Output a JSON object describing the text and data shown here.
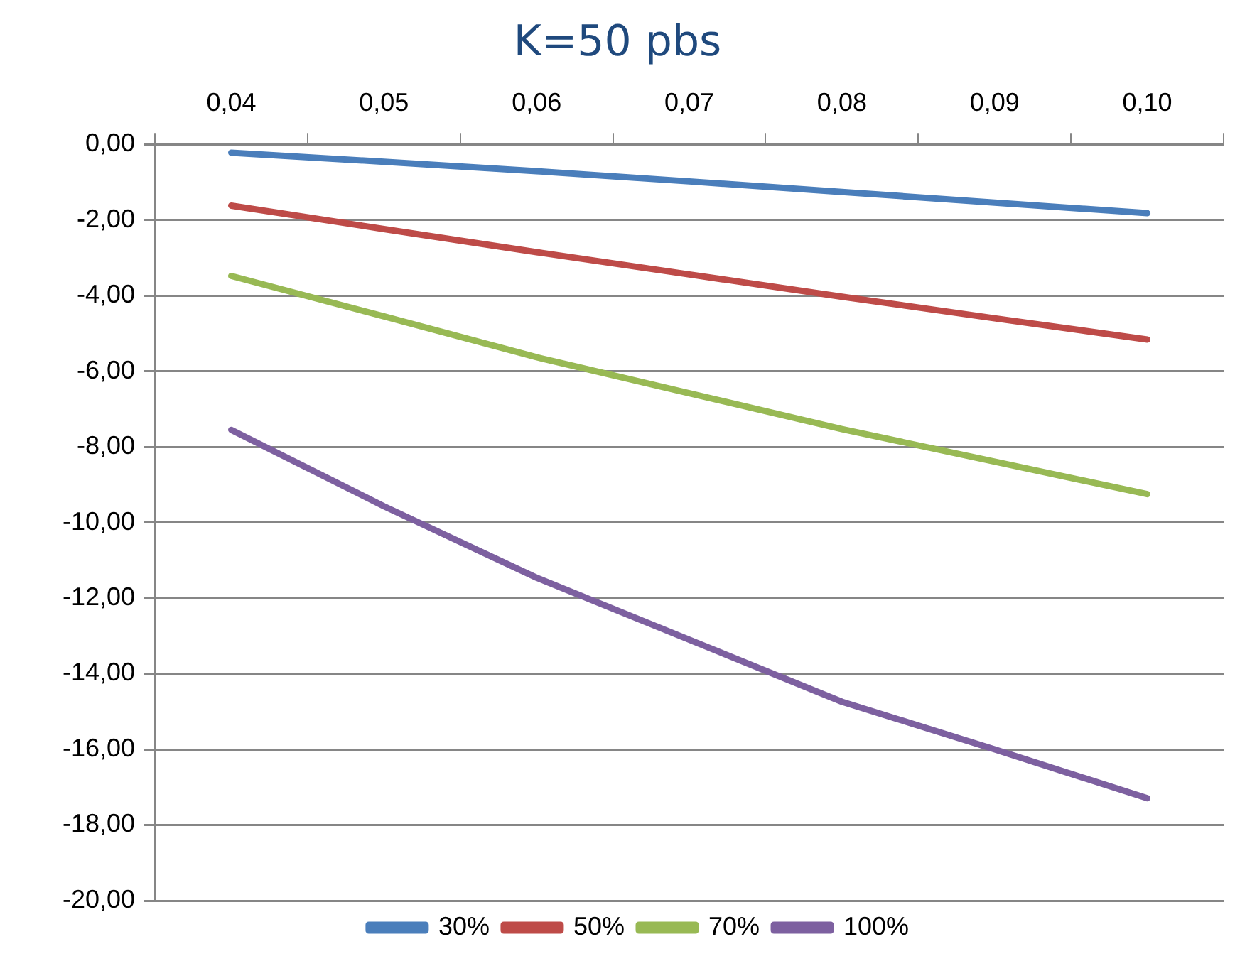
{
  "chart_data": {
    "type": "line",
    "title": "K=50 pbs",
    "categories": [
      "0,04",
      "0,05",
      "0,06",
      "0,07",
      "0,08",
      "0,09",
      "0,10"
    ],
    "series": [
      {
        "name": "30%",
        "color": "#4a7ebb",
        "values": [
          -0.22,
          -0.46,
          -0.71,
          -0.98,
          -1.26,
          -1.54,
          -1.82
        ]
      },
      {
        "name": "50%",
        "color": "#be4b48",
        "values": [
          -1.62,
          -2.24,
          -2.85,
          -3.44,
          -4.03,
          -4.6,
          -5.16
        ]
      },
      {
        "name": "70%",
        "color": "#98b954",
        "values": [
          -3.48,
          -4.55,
          -5.63,
          -6.58,
          -7.53,
          -8.39,
          -9.25
        ]
      },
      {
        "name": "100%",
        "color": "#7d60a0",
        "values": [
          -7.55,
          -9.57,
          -11.46,
          -13.1,
          -14.74,
          -16.0,
          -17.29
        ]
      }
    ],
    "ylim": [
      -20,
      0
    ],
    "yticks": [
      {
        "value": 0,
        "label": "0,00"
      },
      {
        "value": -2,
        "label": "-2,00"
      },
      {
        "value": -4,
        "label": "-4,00"
      },
      {
        "value": -6,
        "label": "-6,00"
      },
      {
        "value": -8,
        "label": "-8,00"
      },
      {
        "value": -10,
        "label": "-10,00"
      },
      {
        "value": -12,
        "label": "-12,00"
      },
      {
        "value": -14,
        "label": "-14,00"
      },
      {
        "value": -16,
        "label": "-16,00"
      },
      {
        "value": -18,
        "label": "-18,00"
      },
      {
        "value": -20,
        "label": "-20,00"
      }
    ],
    "grid": "y",
    "legend": "bottom",
    "marker": "none",
    "line_style": "solid"
  }
}
